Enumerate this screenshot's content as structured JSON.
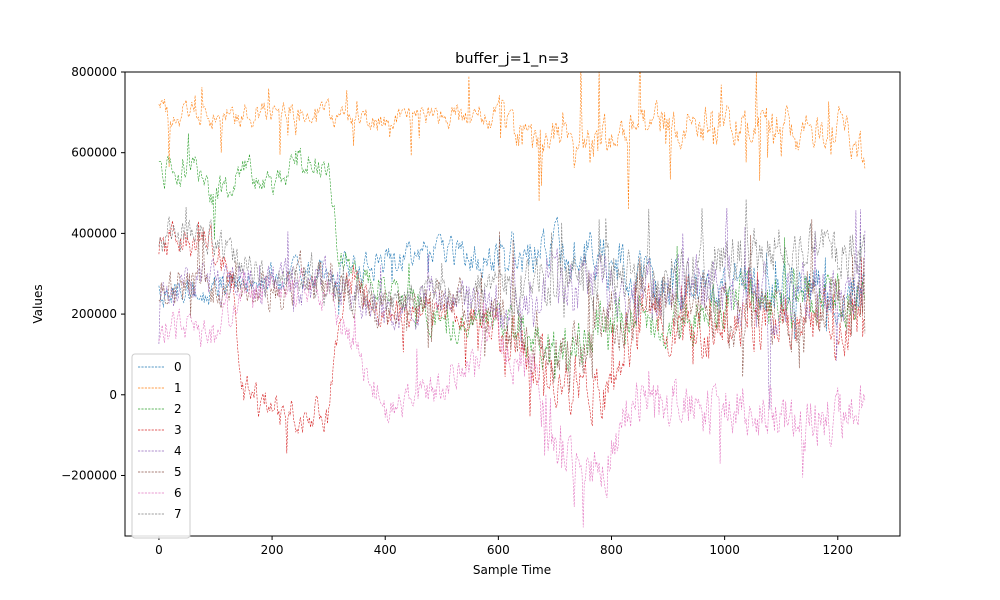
{
  "chart_data": {
    "type": "line",
    "title": "buffer_j=1_n=3",
    "xlabel": "Sample Time",
    "ylabel": "Values",
    "xlim": [
      -60,
      1310
    ],
    "ylim": [
      -350000,
      800000
    ],
    "xticks": [
      0,
      200,
      400,
      600,
      800,
      1000,
      1200
    ],
    "yticks": [
      -200000,
      0,
      200000,
      400000,
      600000,
      800000
    ],
    "ytick_labels": [
      "−200000",
      "0",
      "200000",
      "400000",
      "600000",
      "800000"
    ],
    "n_samples": 1250,
    "grid": false,
    "legend_position": "lower-left",
    "line_style": "dashed",
    "series": [
      {
        "name": "0",
        "color": "#1f77b4",
        "keyframes": [
          [
            0,
            250000
          ],
          [
            100,
            260000
          ],
          [
            200,
            290000
          ],
          [
            300,
            300000
          ],
          [
            400,
            330000
          ],
          [
            500,
            360000
          ],
          [
            600,
            330000
          ],
          [
            700,
            370000
          ],
          [
            750,
            350000
          ],
          [
            800,
            330000
          ],
          [
            850,
            300000
          ],
          [
            900,
            270000
          ],
          [
            1000,
            260000
          ],
          [
            1100,
            270000
          ],
          [
            1200,
            260000
          ],
          [
            1250,
            250000
          ]
        ],
        "noise": 30000,
        "spike_rate": 0.02,
        "spike_amp": 80000
      },
      {
        "name": "1",
        "color": "#ff7f0e",
        "keyframes": [
          [
            0,
            700000
          ],
          [
            100,
            690000
          ],
          [
            200,
            700000
          ],
          [
            300,
            690000
          ],
          [
            400,
            670000
          ],
          [
            500,
            690000
          ],
          [
            600,
            690000
          ],
          [
            650,
            640000
          ],
          [
            700,
            640000
          ],
          [
            750,
            620000
          ],
          [
            800,
            640000
          ],
          [
            850,
            680000
          ],
          [
            900,
            670000
          ],
          [
            1000,
            680000
          ],
          [
            1100,
            660000
          ],
          [
            1200,
            670000
          ],
          [
            1250,
            580000
          ]
        ],
        "noise": 25000,
        "spike_rate": 0.05,
        "spike_amp": 110000
      },
      {
        "name": "2",
        "color": "#2ca02c",
        "keyframes": [
          [
            0,
            550000
          ],
          [
            50,
            570000
          ],
          [
            100,
            490000
          ],
          [
            150,
            560000
          ],
          [
            200,
            530000
          ],
          [
            250,
            590000
          ],
          [
            300,
            550000
          ],
          [
            320,
            330000
          ],
          [
            400,
            280000
          ],
          [
            500,
            170000
          ],
          [
            600,
            190000
          ],
          [
            700,
            90000
          ],
          [
            800,
            200000
          ],
          [
            900,
            160000
          ],
          [
            1000,
            240000
          ],
          [
            1100,
            240000
          ],
          [
            1200,
            260000
          ],
          [
            1250,
            230000
          ]
        ],
        "noise": 30000,
        "spike_rate": 0.04,
        "spike_amp": 90000
      },
      {
        "name": "3",
        "color": "#d62728",
        "keyframes": [
          [
            0,
            380000
          ],
          [
            100,
            370000
          ],
          [
            130,
            280000
          ],
          [
            150,
            0
          ],
          [
            200,
            -40000
          ],
          [
            300,
            -40000
          ],
          [
            330,
            300000
          ],
          [
            400,
            200000
          ],
          [
            500,
            200000
          ],
          [
            600,
            160000
          ],
          [
            700,
            40000
          ],
          [
            800,
            20000
          ],
          [
            850,
            200000
          ],
          [
            900,
            160000
          ],
          [
            1000,
            170000
          ],
          [
            1100,
            180000
          ],
          [
            1200,
            190000
          ],
          [
            1250,
            180000
          ]
        ],
        "noise": 35000,
        "spike_rate": 0.04,
        "spike_amp": 100000
      },
      {
        "name": "4",
        "color": "#9467bd",
        "keyframes": [
          [
            0,
            250000
          ],
          [
            100,
            280000
          ],
          [
            200,
            260000
          ],
          [
            300,
            290000
          ],
          [
            400,
            190000
          ],
          [
            500,
            240000
          ],
          [
            600,
            220000
          ],
          [
            700,
            270000
          ],
          [
            800,
            250000
          ],
          [
            850,
            240000
          ],
          [
            900,
            260000
          ],
          [
            1000,
            250000
          ],
          [
            1100,
            240000
          ],
          [
            1200,
            250000
          ],
          [
            1250,
            230000
          ]
        ],
        "noise": 40000,
        "spike_rate": 0.05,
        "spike_amp": 120000
      },
      {
        "name": "5",
        "color": "#8c564b",
        "keyframes": [
          [
            0,
            260000
          ],
          [
            100,
            270000
          ],
          [
            200,
            260000
          ],
          [
            300,
            280000
          ],
          [
            400,
            220000
          ],
          [
            500,
            240000
          ],
          [
            600,
            200000
          ],
          [
            700,
            100000
          ],
          [
            800,
            180000
          ],
          [
            850,
            230000
          ],
          [
            900,
            220000
          ],
          [
            1000,
            200000
          ],
          [
            1100,
            210000
          ],
          [
            1200,
            220000
          ],
          [
            1250,
            200000
          ]
        ],
        "noise": 40000,
        "spike_rate": 0.05,
        "spike_amp": 110000
      },
      {
        "name": "6",
        "color": "#e377c2",
        "keyframes": [
          [
            0,
            150000
          ],
          [
            50,
            180000
          ],
          [
            100,
            150000
          ],
          [
            150,
            260000
          ],
          [
            200,
            260000
          ],
          [
            300,
            250000
          ],
          [
            350,
            100000
          ],
          [
            400,
            -30000
          ],
          [
            500,
            20000
          ],
          [
            600,
            150000
          ],
          [
            650,
            80000
          ],
          [
            700,
            -120000
          ],
          [
            750,
            -200000
          ],
          [
            800,
            -140000
          ],
          [
            850,
            0
          ],
          [
            900,
            -30000
          ],
          [
            1000,
            -40000
          ],
          [
            1100,
            -50000
          ],
          [
            1200,
            -70000
          ],
          [
            1250,
            -40000
          ]
        ],
        "noise": 35000,
        "spike_rate": 0.04,
        "spike_amp": 90000
      },
      {
        "name": "7",
        "color": "#7f7f7f",
        "keyframes": [
          [
            0,
            380000
          ],
          [
            50,
            410000
          ],
          [
            100,
            380000
          ],
          [
            150,
            310000
          ],
          [
            200,
            280000
          ],
          [
            250,
            300000
          ],
          [
            300,
            260000
          ],
          [
            400,
            230000
          ],
          [
            500,
            260000
          ],
          [
            600,
            260000
          ],
          [
            700,
            280000
          ],
          [
            800,
            300000
          ],
          [
            850,
            270000
          ],
          [
            900,
            300000
          ],
          [
            1000,
            330000
          ],
          [
            1100,
            340000
          ],
          [
            1200,
            350000
          ],
          [
            1250,
            340000
          ]
        ],
        "noise": 35000,
        "spike_rate": 0.04,
        "spike_amp": 100000
      }
    ]
  }
}
